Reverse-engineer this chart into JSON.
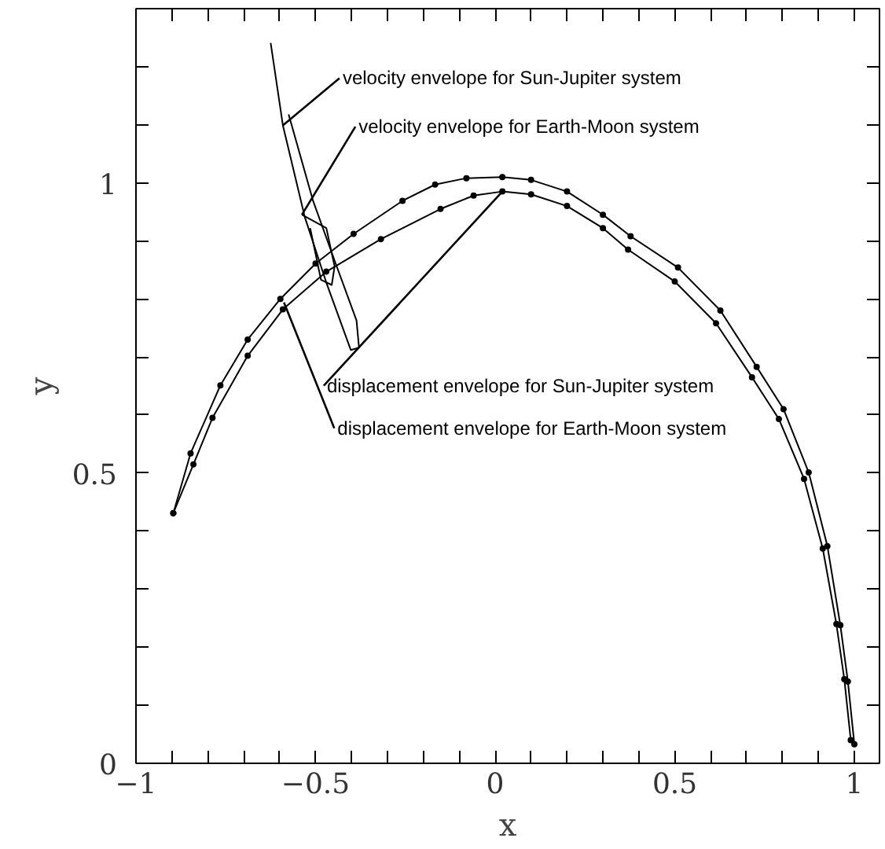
{
  "chart_data": {
    "type": "line",
    "xlabel": "x",
    "ylabel": "y",
    "xlim": [
      -1,
      1.07
    ],
    "ylim": [
      0,
      1.3
    ],
    "xticks": [
      -1,
      {
        "value": -0.9,
        "label": null
      },
      {
        "value": -0.8,
        "label": null
      },
      {
        "value": -0.7,
        "label": null
      },
      {
        "value": -0.6,
        "label": null
      },
      -0.5,
      {
        "value": -0.4,
        "label": null
      },
      {
        "value": -0.3,
        "label": null
      },
      {
        "value": -0.2,
        "label": null
      },
      {
        "value": -0.1,
        "label": null
      },
      0,
      {
        "value": 0.1,
        "label": null
      },
      {
        "value": 0.2,
        "label": null
      },
      {
        "value": 0.3,
        "label": null
      },
      {
        "value": 0.4,
        "label": null
      },
      0.5,
      {
        "value": 0.6,
        "label": null
      },
      {
        "value": 0.7,
        "label": null
      },
      {
        "value": 0.8,
        "label": null
      },
      {
        "value": 0.9,
        "label": null
      },
      1
    ],
    "yticks": [
      0,
      {
        "value": 0.1,
        "label": null
      },
      {
        "value": 0.2,
        "label": null
      },
      {
        "value": 0.3,
        "label": null
      },
      {
        "value": 0.4,
        "label": null
      },
      0.5,
      {
        "value": 0.6,
        "label": null
      },
      {
        "value": 0.7,
        "label": null
      },
      {
        "value": 0.8,
        "label": null
      },
      {
        "value": 0.9,
        "label": null
      },
      1,
      {
        "value": 1.1,
        "label": null
      },
      {
        "value": 1.2,
        "label": null
      }
    ],
    "grid": false,
    "line_style": "solid",
    "series": [
      {
        "color": "#000000",
        "marker": "circle",
        "x": [
          -0.896,
          -0.848,
          -0.765,
          -0.689,
          -0.598,
          -0.5,
          -0.394,
          -0.258,
          -0.167,
          -0.08,
          0.02,
          0.1,
          0.2,
          0.3,
          0.377,
          0.509,
          0.627,
          0.728,
          0.803,
          0.873,
          0.925,
          0.961,
          0.982,
          1.0
        ],
        "values": [
          0.431,
          0.534,
          0.651,
          0.73,
          0.8,
          0.861,
          0.912,
          0.969,
          0.997,
          1.008,
          1.01,
          1.005,
          0.985,
          0.945,
          0.908,
          0.854,
          0.78,
          0.683,
          0.61,
          0.501,
          0.374,
          0.238,
          0.141,
          0.033
        ]
      },
      {
        "color": "#000000",
        "marker": "circle",
        "x": [
          -0.896,
          -0.84,
          -0.787,
          -0.689,
          -0.591,
          -0.47,
          -0.318,
          -0.152,
          -0.06,
          0.02,
          0.1,
          0.2,
          0.3,
          0.37,
          0.5,
          0.615,
          0.715,
          0.79,
          0.86,
          0.912,
          0.95,
          0.972,
          0.99
        ],
        "values": [
          0.431,
          0.515,
          0.595,
          0.702,
          0.782,
          0.847,
          0.903,
          0.955,
          0.978,
          0.985,
          0.98,
          0.96,
          0.922,
          0.885,
          0.83,
          0.758,
          0.665,
          0.593,
          0.49,
          0.37,
          0.24,
          0.145,
          0.04
        ]
      },
      {
        "color": "#000000",
        "marker": "none",
        "x": [
          -0.625,
          -0.591,
          -0.53,
          -0.47,
          -0.402,
          -0.379,
          -0.386,
          -0.447,
          -0.507,
          -0.575
        ],
        "values": [
          1.241,
          1.099,
          0.941,
          0.828,
          0.712,
          0.716,
          0.763,
          0.866,
          0.969,
          1.118
        ]
      },
      {
        "color": "#000000",
        "marker": "none",
        "x": [
          -0.538,
          -0.47,
          -0.447,
          -0.455,
          -0.485,
          -0.515
        ],
        "values": [
          0.945,
          0.922,
          0.856,
          0.824,
          0.833,
          0.922
        ]
      }
    ],
    "annotations": [
      {
        "text": "velocity envelope for Sun-Jupiter system",
        "x": -0.591,
        "y": 1.099
      },
      {
        "text": "velocity envelope for Earth-Moon system",
        "x": -0.538,
        "y": 0.945
      },
      {
        "text": "displacement envelope for Sun-Jupiter system",
        "x": 0.026,
        "y": 0.989
      },
      {
        "text": "displacement envelope for Earth-Moon system",
        "x": -0.588,
        "y": 0.794
      }
    ]
  }
}
